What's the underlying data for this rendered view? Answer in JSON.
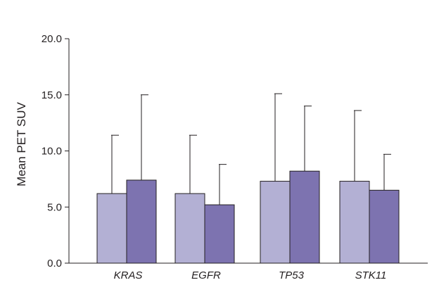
{
  "chart_data": {
    "type": "bar",
    "title": "",
    "xlabel": "",
    "ylabel": "Mean PET SUV",
    "categories": [
      "KRAS",
      "EGFR",
      "TP53",
      "STK11"
    ],
    "ylim": [
      0,
      20
    ],
    "yticks": [
      0,
      5,
      10,
      15,
      20
    ],
    "ytick_labels": [
      "0.0",
      "5.0",
      "10.0",
      "15.0",
      "20.0"
    ],
    "grid": false,
    "legend": "none",
    "series": [
      {
        "values": [
          6.2,
          6.2,
          7.3,
          7.3
        ],
        "error_plus": [
          5.2,
          5.2,
          7.8,
          6.3
        ],
        "color": "#b3b0d4"
      },
      {
        "values": [
          7.4,
          5.2,
          8.2,
          6.5
        ],
        "error_plus": [
          7.6,
          3.6,
          5.8,
          3.2
        ],
        "color": "#7d73b0"
      }
    ]
  }
}
